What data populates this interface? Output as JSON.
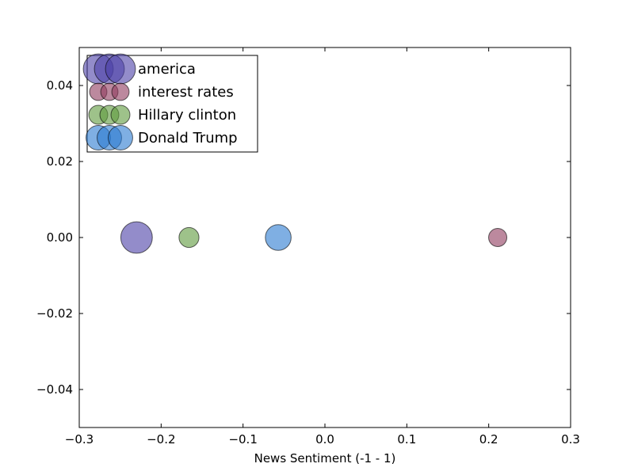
{
  "chart_data": {
    "type": "scatter",
    "title": "",
    "xlabel": "News Sentiment (-1  -  1)",
    "ylabel": "",
    "xlim": [
      -0.3,
      0.3
    ],
    "ylim": [
      -0.05,
      0.05
    ],
    "x_ticks": [
      -0.3,
      -0.2,
      -0.1,
      0.0,
      0.1,
      0.2,
      0.3
    ],
    "x_tick_labels": [
      "−0.3",
      "−0.2",
      "−0.1",
      "0.0",
      "0.1",
      "0.2",
      "0.3"
    ],
    "y_ticks": [
      -0.04,
      -0.02,
      0.0,
      0.02,
      0.04
    ],
    "y_tick_labels": [
      "−0.04",
      "−0.02",
      "0.00",
      "0.02",
      "0.04"
    ],
    "grid": false,
    "legend_position": "top-left",
    "series": [
      {
        "name": "america",
        "color": "#4b3fa6",
        "x": -0.23,
        "y": 0.0,
        "size": 3.0
      },
      {
        "name": "interest rates",
        "color": "#8f3a5e",
        "x": 0.211,
        "y": 0.0,
        "size": 1.0
      },
      {
        "name": "Hillary clinton",
        "color": "#5e9a3c",
        "x": -0.166,
        "y": 0.0,
        "size": 1.2
      },
      {
        "name": "Donald Trump",
        "color": "#2a7ad0",
        "x": -0.057,
        "y": 0.0,
        "size": 2.0
      }
    ]
  }
}
